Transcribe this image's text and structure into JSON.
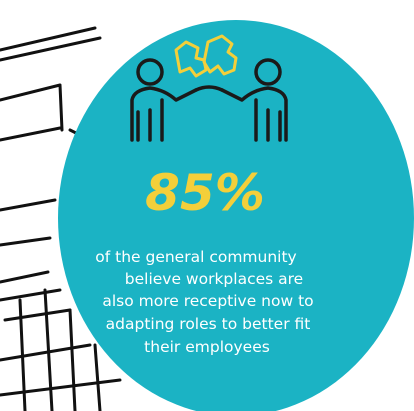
{
  "stat": "85%",
  "description": [
    "of the general community",
    "believe workplaces are",
    "also more receptive now to",
    "adapting roles to better fit",
    "their employees"
  ]
}
